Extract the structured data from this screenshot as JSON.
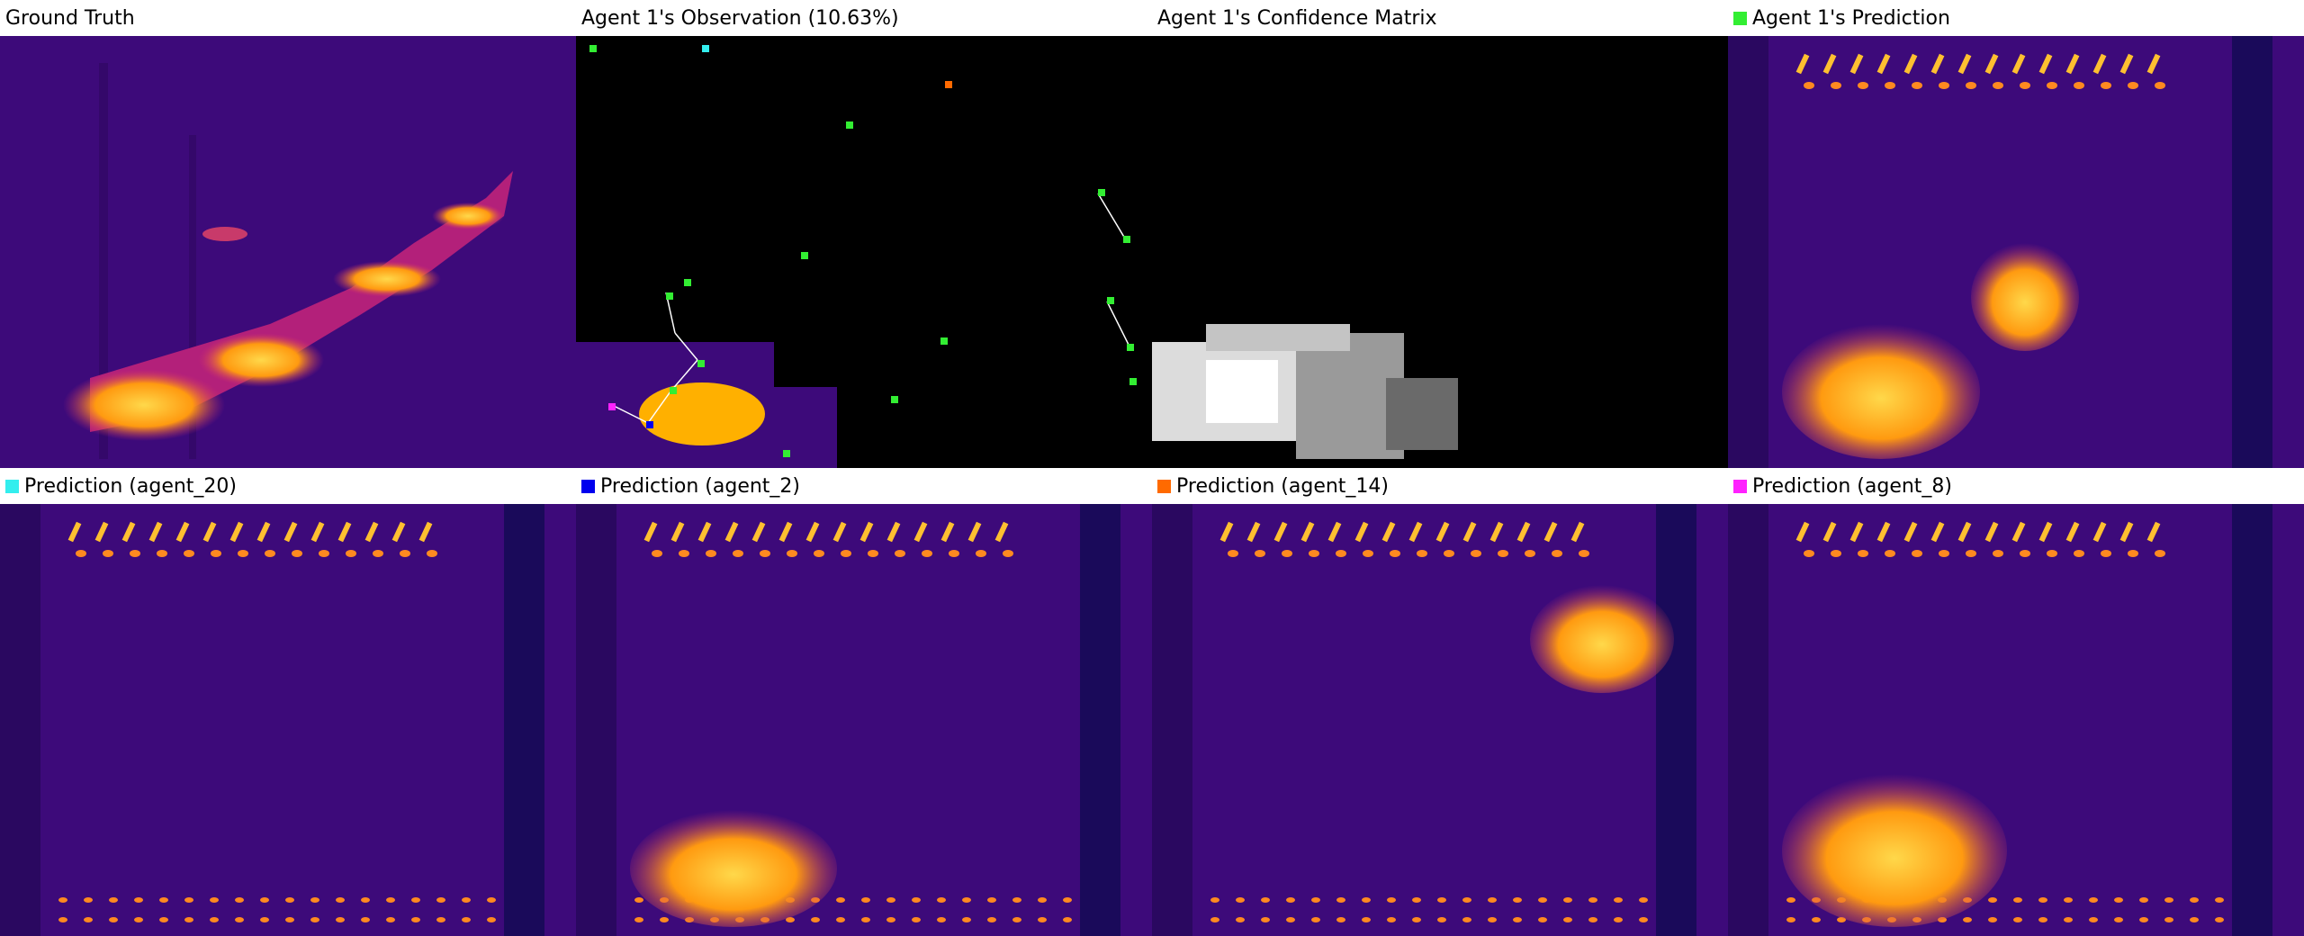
{
  "panels": {
    "ground_truth": {
      "title": "Ground Truth"
    },
    "observation": {
      "title": "Agent 1's Observation (10.63%)"
    },
    "confidence": {
      "title": "Agent 1's Confidence Matrix"
    },
    "agent1_prediction": {
      "title": "Agent 1's Prediction",
      "swatch_color": "#33ee33"
    },
    "agent20_prediction": {
      "title": "Prediction (agent_20)",
      "swatch_color": "#33eeee"
    },
    "agent2_prediction": {
      "title": "Prediction (agent_2)",
      "swatch_color": "#0000ee"
    },
    "agent14_prediction": {
      "title": "Prediction (agent_14)",
      "swatch_color": "#ff6a00"
    },
    "agent8_prediction": {
      "title": "Prediction (agent_8)",
      "swatch_color": "#ff22ff"
    }
  },
  "colors": {
    "heatmap_background": "#3d0a7a",
    "heatmap_hot": "#ffb000",
    "heatmap_warm": "#ff6a00",
    "observation_background": "#000000",
    "agent_marker": "#33ee33"
  }
}
